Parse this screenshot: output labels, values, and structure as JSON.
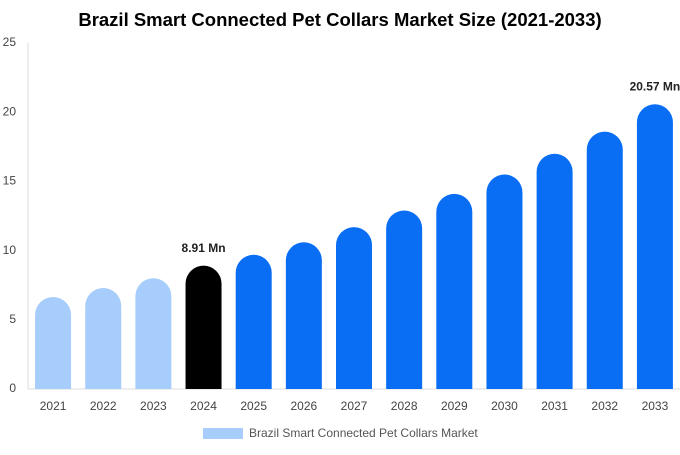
{
  "chart_data": {
    "type": "bar",
    "title": "Brazil Smart Connected Pet Collars Market Size (2021-2033)",
    "categories": [
      "2021",
      "2022",
      "2023",
      "2024",
      "2025",
      "2026",
      "2027",
      "2028",
      "2029",
      "2030",
      "2031",
      "2032",
      "2033"
    ],
    "series": [
      {
        "name": "Brazil Smart Connected Pet Collars Market",
        "color": "#a6cdfb",
        "colors": [
          "#a6cdfb",
          "#a6cdfb",
          "#a6cdfb",
          "#000000",
          "#0a6ef5",
          "#0a6ef5",
          "#0a6ef5",
          "#0a6ef5",
          "#0a6ef5",
          "#0a6ef5",
          "#0a6ef5",
          "#0a6ef5",
          "#0a6ef5"
        ],
        "values": [
          6.65,
          7.3,
          8.0,
          8.91,
          9.7,
          10.6,
          11.7,
          12.9,
          14.1,
          15.5,
          17.0,
          18.6,
          20.57
        ],
        "value_labels": [
          null,
          null,
          null,
          "8.91 Mn",
          null,
          null,
          null,
          null,
          null,
          null,
          null,
          null,
          "20.57 Mn"
        ]
      }
    ],
    "ylim": [
      0,
      25
    ],
    "yticks": [
      0,
      5,
      10,
      15,
      20,
      25
    ],
    "grid": false
  }
}
